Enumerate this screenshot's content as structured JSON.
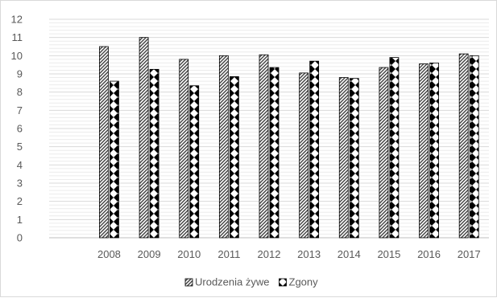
{
  "chart_data": {
    "type": "bar",
    "title": "",
    "xlabel": "",
    "ylabel": "",
    "categories": [
      "",
      "2008",
      "2009",
      "2010",
      "2011",
      "2012",
      "2013",
      "2014",
      "2015",
      "2016",
      "2017"
    ],
    "series": [
      {
        "name": "Urodzenia żywe",
        "values": [
          null,
          10.5,
          11.0,
          9.8,
          10.0,
          10.05,
          9.05,
          8.8,
          9.35,
          9.55,
          10.1
        ],
        "color": "#404040",
        "pattern": "diagonal-hatch"
      },
      {
        "name": "Zgony",
        "values": [
          null,
          8.6,
          9.25,
          8.35,
          8.85,
          9.35,
          9.7,
          8.75,
          9.9,
          9.6,
          10.0
        ],
        "color": "#000000",
        "pattern": "diamond-checker"
      }
    ],
    "ylim": [
      0,
      12
    ],
    "yticks": [
      0,
      1,
      2,
      3,
      4,
      5,
      6,
      7,
      8,
      9,
      10,
      11,
      12
    ],
    "grid": true,
    "legend": "bottom-center"
  }
}
